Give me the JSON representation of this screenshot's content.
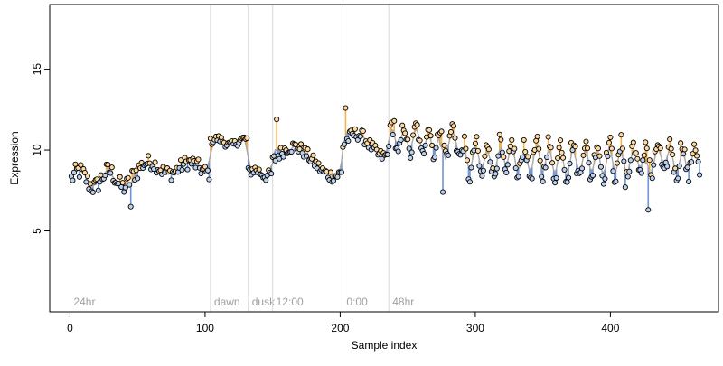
{
  "chart_data": {
    "type": "scatter",
    "xlabel": "Sample index",
    "ylabel": "Expression",
    "xlim": [
      -15,
      480
    ],
    "ylim": [
      0,
      19
    ],
    "x_ticks": [
      0,
      100,
      200,
      300,
      400
    ],
    "y_ticks": [
      5,
      10,
      15
    ],
    "grid": false,
    "colors": {
      "high_bar": "#f5b04f",
      "low_bar": "#6f93d6",
      "trend_line": "#a8a8a8",
      "point_fill_high": "#ffd9a0",
      "point_fill_low": "#bcd0f0",
      "marker_line": "#d9d9d9",
      "marker_text": "#a0a0a0"
    },
    "markers": [
      {
        "x": 0,
        "label": "24hr"
      },
      {
        "x": 104,
        "label": "dawn"
      },
      {
        "x": 132,
        "label": "dusk"
      },
      {
        "x": 150,
        "label": "12:00"
      },
      {
        "x": 202,
        "label": "0:00"
      },
      {
        "x": 236,
        "label": "48hr"
      }
    ],
    "segments": [
      {
        "start": 1,
        "end": 50,
        "level": 8.2,
        "wave_amp": 0.5,
        "wave_period": 22,
        "noise": 0.55
      },
      {
        "start": 51,
        "end": 103,
        "level": 8.9,
        "wave_amp": 0.35,
        "wave_period": 30,
        "noise": 0.45
      },
      {
        "start": 104,
        "end": 131,
        "level": 10.5,
        "wave_amp": 0.2,
        "wave_period": 20,
        "noise": 0.25
      },
      {
        "start": 132,
        "end": 149,
        "level": 8.6,
        "wave_amp": 0.2,
        "wave_period": 18,
        "noise": 0.35
      },
      {
        "start": 150,
        "end": 201,
        "level": 9.3,
        "wave_amp": 0.9,
        "wave_period": 60,
        "noise": 0.4
      },
      {
        "start": 202,
        "end": 235,
        "level": 10.3,
        "wave_amp": 0.7,
        "wave_period": 40,
        "noise": 0.4
      },
      {
        "start": 236,
        "end": 288,
        "level": 10.6,
        "wave_amp": 0.9,
        "wave_period": 9,
        "noise": 0.45
      },
      {
        "start": 289,
        "end": 466,
        "level": 9.4,
        "wave_amp": 1.05,
        "wave_period": 9,
        "noise": 0.55
      }
    ],
    "spikes": [
      {
        "x": 153,
        "y": 11.9
      },
      {
        "x": 204,
        "y": 12.6
      },
      {
        "x": 240,
        "y": 11.8
      },
      {
        "x": 276,
        "y": 7.4
      },
      {
        "x": 331,
        "y": 8.3
      },
      {
        "x": 411,
        "y": 7.7
      },
      {
        "x": 428,
        "y": 6.3
      },
      {
        "x": 45,
        "y": 6.5
      }
    ]
  }
}
